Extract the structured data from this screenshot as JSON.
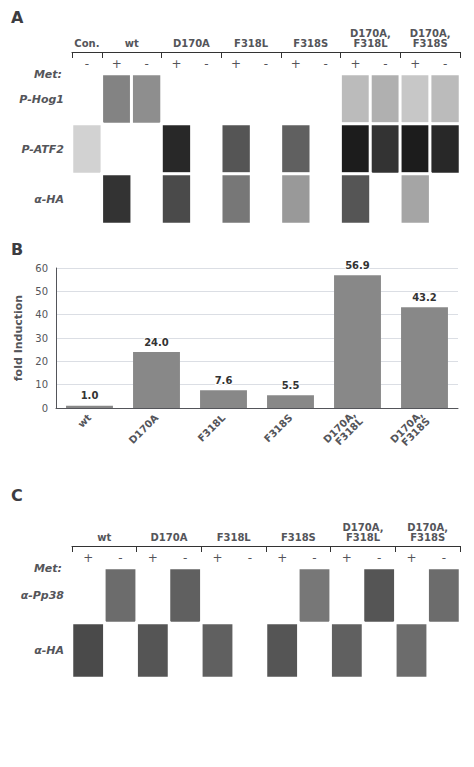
{
  "chart_data": [
    {
      "type": "heatmap",
      "title": "A",
      "xlabel": "Met:",
      "categories": [
        "-",
        "+",
        "-",
        "+",
        "-",
        "+",
        "-",
        "+",
        "-",
        "+",
        "-",
        "+",
        "-"
      ],
      "groups": [
        {
          "name": "Con.",
          "span": 1
        },
        {
          "name": "wt",
          "span": 2
        },
        {
          "name": "D170A",
          "span": 2
        },
        {
          "name": "F318L",
          "span": 2
        },
        {
          "name": "F318S",
          "span": 2
        },
        {
          "name": "D170A,\nF318L",
          "span": 2
        },
        {
          "name": "D170A,\nF318S",
          "span": 2
        }
      ],
      "rows": [
        "P-Hog1",
        "P-ATF2",
        "α-HA"
      ],
      "bands": [
        [
          [
            1,
            0.5
          ],
          [
            2,
            0.45
          ],
          [
            9,
            0.25
          ],
          [
            10,
            0.3
          ],
          [
            11,
            0.2
          ],
          [
            12,
            0.25
          ]
        ],
        [
          [
            0,
            0.15
          ],
          [
            3,
            0.9
          ],
          [
            5,
            0.7
          ],
          [
            7,
            0.65
          ],
          [
            9,
            0.95
          ],
          [
            10,
            0.85
          ],
          [
            11,
            0.95
          ],
          [
            12,
            0.9
          ]
        ],
        [
          [
            1,
            0.85
          ],
          [
            3,
            0.75
          ],
          [
            5,
            0.55
          ],
          [
            7,
            0.4
          ],
          [
            9,
            0.7
          ],
          [
            11,
            0.35
          ]
        ]
      ],
      "zlim": [
        0,
        1
      ]
    },
    {
      "type": "bar",
      "title": "B",
      "categories": [
        "wt",
        "D170A",
        "F318L",
        "F318S",
        "D170A,\nF318L",
        "D170A,\nF318S"
      ],
      "values": [
        1.0,
        24.0,
        7.6,
        5.5,
        56.9,
        43.2
      ],
      "value_labels": [
        "1.0",
        "24.0",
        "7.6",
        "5.5",
        "56.9",
        "43.2"
      ],
      "color": "#888888",
      "ylabel": "fold Induction",
      "ylim": [
        0,
        60
      ],
      "yticks": [
        0,
        10,
        20,
        30,
        40,
        50,
        60
      ],
      "grid": true,
      "data_labels": true
    },
    {
      "type": "heatmap",
      "title": "C",
      "xlabel": "Met:",
      "categories": [
        "+",
        "-",
        "+",
        "-",
        "+",
        "-",
        "+",
        "-",
        "+",
        "-",
        "+",
        "-"
      ],
      "groups": [
        {
          "name": "wt",
          "span": 2
        },
        {
          "name": "D170A",
          "span": 2
        },
        {
          "name": "F318L",
          "span": 2
        },
        {
          "name": "F318S",
          "span": 2
        },
        {
          "name": "D170A,\nF318L",
          "span": 2
        },
        {
          "name": "D170A,\nF318S",
          "span": 2
        }
      ],
      "rows": [
        "α-Pp38",
        "α-HA"
      ],
      "bands": [
        [
          [
            1,
            0.6
          ],
          [
            3,
            0.65
          ],
          [
            7,
            0.55
          ],
          [
            9,
            0.7
          ],
          [
            11,
            0.6
          ]
        ],
        [
          [
            0,
            0.75
          ],
          [
            2,
            0.7
          ],
          [
            4,
            0.65
          ],
          [
            6,
            0.7
          ],
          [
            8,
            0.65
          ],
          [
            10,
            0.6
          ]
        ]
      ],
      "zlim": [
        0,
        1
      ]
    }
  ]
}
